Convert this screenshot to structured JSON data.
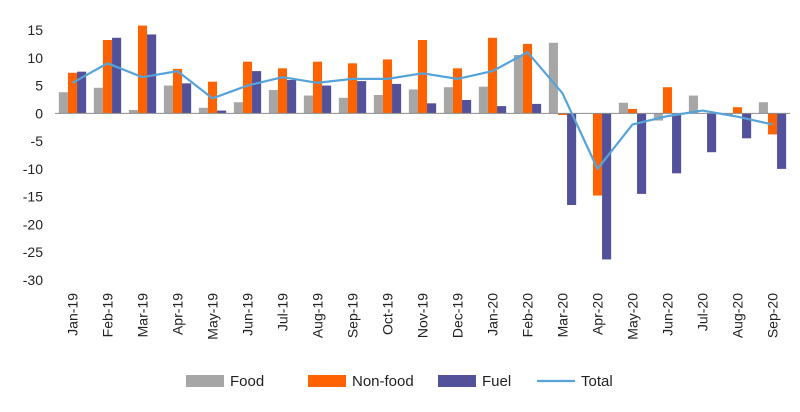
{
  "chart_data": {
    "type": "bar",
    "categories": [
      "Jan-19",
      "Feb-19",
      "Mar-19",
      "Apr-19",
      "May-19",
      "Jun-19",
      "Jul-19",
      "Aug-19",
      "Sep-19",
      "Oct-19",
      "Nov-19",
      "Dec-19",
      "Jan-20",
      "Feb-20",
      "Mar-20",
      "Apr-20",
      "May-20",
      "Jun-20",
      "Jul-20",
      "Aug-20",
      "Sep-20"
    ],
    "series": [
      {
        "name": "Food",
        "kind": "bar",
        "color": "#A6A6A6",
        "values": [
          3.8,
          4.6,
          0.6,
          5.0,
          1.0,
          2.0,
          4.2,
          3.2,
          2.8,
          3.3,
          4.3,
          4.7,
          4.8,
          10.5,
          12.7,
          0.0,
          1.9,
          -1.3,
          3.2,
          -0.3,
          2.0
        ]
      },
      {
        "name": "Non-food",
        "kind": "bar",
        "color": "#FF6200",
        "values": [
          7.3,
          13.2,
          15.8,
          8.0,
          5.7,
          9.3,
          8.1,
          9.3,
          9.0,
          9.7,
          13.2,
          8.1,
          13.6,
          12.5,
          -0.3,
          -14.8,
          0.8,
          4.7,
          0.0,
          1.1,
          -3.8
        ]
      },
      {
        "name": "Fuel",
        "kind": "bar",
        "color": "#525199",
        "values": [
          7.5,
          13.6,
          14.2,
          5.4,
          0.5,
          7.6,
          6.0,
          5.0,
          5.8,
          5.3,
          1.8,
          2.4,
          1.3,
          1.7,
          -16.5,
          -26.3,
          -14.5,
          -10.8,
          -7.0,
          -4.5,
          -10.0
        ]
      },
      {
        "name": "Total",
        "kind": "line",
        "color": "#56A3D9",
        "values": [
          5.5,
          9.0,
          6.5,
          7.6,
          2.7,
          5.0,
          6.5,
          5.5,
          6.2,
          6.2,
          7.2,
          6.2,
          7.6,
          11.0,
          3.6,
          -10.0,
          -2.0,
          -0.5,
          0.5,
          -0.6,
          -2.0
        ]
      }
    ],
    "ylim": [
      -30,
      15
    ],
    "yticks": [
      15,
      10,
      5,
      0,
      -5,
      -10,
      -15,
      -20,
      -25,
      -30
    ],
    "title": "",
    "xlabel": "",
    "ylabel": "",
    "grid": false,
    "legend": "bottom"
  }
}
